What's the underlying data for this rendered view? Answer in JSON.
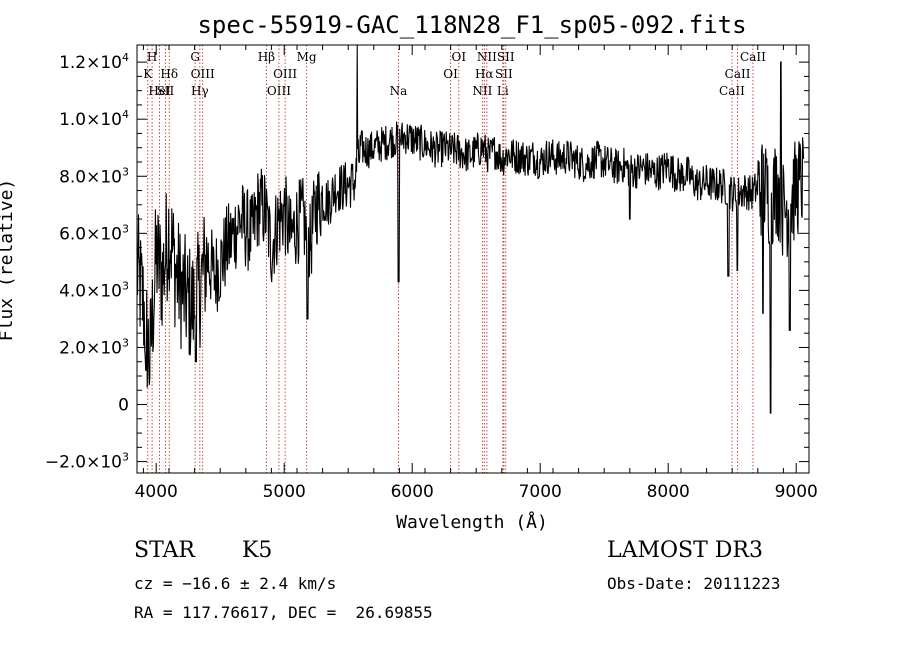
{
  "chart_data": {
    "type": "line",
    "title": "spec-55919-GAC_118N28_F1_sp05-092.fits",
    "xlabel": "Wavelength (Å)",
    "ylabel": "Flux (relative)",
    "xlim": [
      3850,
      9100
    ],
    "ylim": [
      -2400,
      12600
    ],
    "x_ticks": [
      {
        "value": 4000,
        "label": "4000"
      },
      {
        "value": 5000,
        "label": "5000"
      },
      {
        "value": 6000,
        "label": "6000"
      },
      {
        "value": 7000,
        "label": "7000"
      },
      {
        "value": 8000,
        "label": "8000"
      },
      {
        "value": 9000,
        "label": "9000"
      }
    ],
    "y_ticks": [
      {
        "value": -2000,
        "mant": "−2.0×10",
        "exp": "3"
      },
      {
        "value": 0,
        "mant": "0",
        "exp": ""
      },
      {
        "value": 2000,
        "mant": "2.0×10",
        "exp": "3"
      },
      {
        "value": 4000,
        "mant": "4.0×10",
        "exp": "3"
      },
      {
        "value": 6000,
        "mant": "6.0×10",
        "exp": "3"
      },
      {
        "value": 8000,
        "mant": "8.0×10",
        "exp": "3"
      },
      {
        "value": 10000,
        "mant": "1.0×10",
        "exp": "4"
      },
      {
        "value": 12000,
        "mant": "1.2×10",
        "exp": "4"
      }
    ],
    "spectrum": {
      "x": [
        3850,
        3900,
        3950,
        4000,
        4050,
        4100,
        4150,
        4200,
        4250,
        4300,
        4350,
        4400,
        4450,
        4500,
        4550,
        4600,
        4650,
        4700,
        4750,
        4800,
        4850,
        4900,
        4950,
        5000,
        5050,
        5100,
        5150,
        5200,
        5250,
        5300,
        5350,
        5400,
        5450,
        5500,
        5550,
        5600,
        5650,
        5700,
        5750,
        5800,
        5850,
        5900,
        5950,
        6000,
        6050,
        6100,
        6150,
        6200,
        6250,
        6300,
        6350,
        6400,
        6450,
        6500,
        6550,
        6600,
        6650,
        6700,
        6750,
        6800,
        6850,
        6900,
        6950,
        7000,
        7050,
        7100,
        7150,
        7200,
        7250,
        7300,
        7350,
        7400,
        7450,
        7500,
        7550,
        7600,
        7650,
        7700,
        7750,
        7800,
        7850,
        7900,
        7950,
        8000,
        8050,
        8100,
        8150,
        8200,
        8250,
        8300,
        8350,
        8400,
        8450,
        8500,
        8550,
        8600,
        8650,
        8700,
        8750,
        8800,
        8850,
        8900,
        8950,
        9000,
        9050
      ],
      "y": [
        4800,
        3500,
        1500,
        5200,
        4500,
        6200,
        4700,
        4000,
        3600,
        3400,
        4300,
        5200,
        4500,
        4900,
        5500,
        5900,
        6500,
        6200,
        5900,
        7000,
        6800,
        5500,
        6400,
        6800,
        5800,
        6400,
        6500,
        5500,
        7000,
        7200,
        7100,
        7600,
        7600,
        7700,
        7800,
        9000,
        8900,
        9000,
        9100,
        9200,
        9300,
        9300,
        9400,
        9300,
        9200,
        9100,
        9000,
        8900,
        9000,
        8900,
        8900,
        8800,
        8700,
        8900,
        9000,
        8700,
        8900,
        8600,
        8800,
        8700,
        8700,
        8600,
        8700,
        8500,
        8700,
        8700,
        8600,
        8700,
        8600,
        8500,
        8400,
        8500,
        8600,
        8500,
        8400,
        8300,
        8400,
        8200,
        8200,
        8300,
        8200,
        8100,
        8200,
        8400,
        8100,
        8000,
        8100,
        7800,
        7700,
        7800,
        7700,
        7700,
        7600,
        7400,
        7400,
        7500,
        7400,
        7600,
        7600,
        7200,
        7700,
        6800,
        7000,
        7600,
        7800
      ],
      "features": [
        {
          "x": 3920,
          "y": 1200
        },
        {
          "x": 4310,
          "y": 1500
        },
        {
          "x": 5183,
          "y": 3000
        },
        {
          "x": 5893,
          "y": 4300
        },
        {
          "x": 7700,
          "y": 6500
        },
        {
          "x": 8470,
          "y": 4500
        },
        {
          "x": 8540,
          "y": 4700
        },
        {
          "x": 8740,
          "y": 3200
        },
        {
          "x": 8800,
          "y": -300
        },
        {
          "x": 8880,
          "y": 12000
        },
        {
          "x": 8950,
          "y": 2600
        }
      ]
    },
    "spectral_lines": [
      {
        "wave": 3934,
        "label": "K",
        "row": 1
      },
      {
        "wave": 3968,
        "label": "H",
        "row": 0
      },
      {
        "wave": 4026,
        "label": "HeI",
        "row": 2
      },
      {
        "wave": 4072,
        "label": "SII",
        "row": 2
      },
      {
        "wave": 4102,
        "label": "Hδ",
        "row": 1
      },
      {
        "wave": 4304,
        "label": "G",
        "row": 0
      },
      {
        "wave": 4341,
        "label": "Hγ",
        "row": 2
      },
      {
        "wave": 4363,
        "label": "OIII",
        "row": 1
      },
      {
        "wave": 4861,
        "label": "Hβ",
        "row": 0
      },
      {
        "wave": 4959,
        "label": "OIII",
        "row": 2
      },
      {
        "wave": 5007,
        "label": "OIII",
        "row": 1
      },
      {
        "wave": 5175,
        "label": "Mg",
        "row": 0
      },
      {
        "wave": 5893,
        "label": "Na",
        "row": 2
      },
      {
        "wave": 6300,
        "label": "OI",
        "row": 1
      },
      {
        "wave": 6364,
        "label": "OI",
        "row": 0
      },
      {
        "wave": 6548,
        "label": "NII",
        "row": 2
      },
      {
        "wave": 6563,
        "label": "Hα",
        "row": 1
      },
      {
        "wave": 6583,
        "label": "NII",
        "row": 0
      },
      {
        "wave": 6708,
        "label": "Li",
        "row": 2
      },
      {
        "wave": 6716,
        "label": "SII",
        "row": 1
      },
      {
        "wave": 6731,
        "label": "SII",
        "row": 0
      },
      {
        "wave": 8498,
        "label": "CaII",
        "row": 2
      },
      {
        "wave": 8542,
        "label": "CaII",
        "row": 1
      },
      {
        "wave": 8662,
        "label": "CaII",
        "row": 0
      }
    ],
    "line_color": "#c0392b"
  },
  "info": {
    "obj_class": "STAR",
    "subclass": "K5",
    "survey": "LAMOST DR3",
    "cz": "cz = −16.6 ± 2.4 km/s",
    "obs_date": "Obs-Date: 20111223",
    "coords": "RA = 117.76617, DEC =  26.69855"
  }
}
